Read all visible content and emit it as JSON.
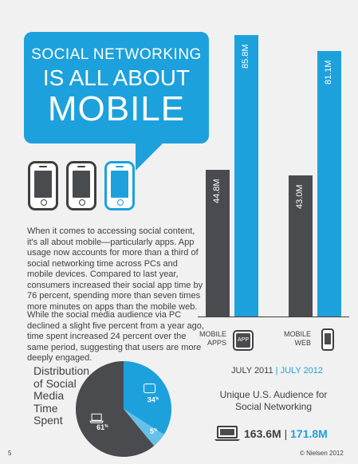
{
  "header": {
    "line1": "SOCIAL NETWORKING",
    "line2": "IS ALL ABOUT",
    "line3": "MOBILE"
  },
  "body": {
    "paragraph1": "When it comes to accessing social content, it's all about mobile—particularly apps. App usage now accounts for more than a third of social networking time across PCs and mobile devices. Compared to last year, consumers increased their social app time by 76 percent, spending more than seven times more minutes on apps than the mobile web.",
    "paragraph2": "While the social media audience via PC declined a slight five percent from a year ago, time spent increased 24 percent over the same period, suggesting that users are more deeply engaged."
  },
  "colors": {
    "blue": "#1da1dc",
    "dark": "#4a4b4f",
    "text": "#3f3f41",
    "background": "#f1f1f1"
  },
  "icons": [
    "smartphone-icon",
    "app-icon",
    "laptop-icon"
  ],
  "chart_data": [
    {
      "type": "bar",
      "categories": [
        "MOBILE APPS",
        "MOBILE WEB"
      ],
      "series": [
        {
          "name": "JULY 2011",
          "color": "#4a4b4f",
          "values": [
            44.8,
            43.0
          ],
          "labels": [
            "44.8M",
            "43.0M"
          ]
        },
        {
          "name": "JULY 2012",
          "color": "#1da1dc",
          "values": [
            85.8,
            81.1
          ],
          "labels": [
            "85.8M",
            "81.1M"
          ]
        }
      ],
      "category_labels": [
        [
          "MOBILE",
          "APPS"
        ],
        [
          "MOBILE",
          "WEB"
        ]
      ],
      "app_icon_label": "APP",
      "legend": {
        "year1": "JULY 2011",
        "separator": "|",
        "year2": "JULY 2012"
      },
      "caption_line1": "Unique U.S. Audience for",
      "caption_line2": "Social Networking",
      "totals": {
        "value1": "163.6M",
        "separator": "|",
        "value2": "171.8M"
      },
      "ylim": [
        0,
        90
      ],
      "grid": false
    },
    {
      "type": "pie",
      "title_lines": [
        "Distribution",
        "of Social",
        "Media",
        "Time",
        "Spent"
      ],
      "slices": [
        {
          "name": "PC",
          "value": 61,
          "label": "61",
          "unit": "%",
          "color": "#4a4b4f"
        },
        {
          "name": "App",
          "value": 34,
          "label": "34",
          "unit": "%",
          "color": "#1da1dc"
        },
        {
          "name": "Mobile web",
          "value": 5,
          "label": "5",
          "unit": "%",
          "color": "#66c1ea"
        }
      ]
    }
  ],
  "footer": {
    "page_number": "5",
    "copyright": "© Nielsen 2012"
  }
}
